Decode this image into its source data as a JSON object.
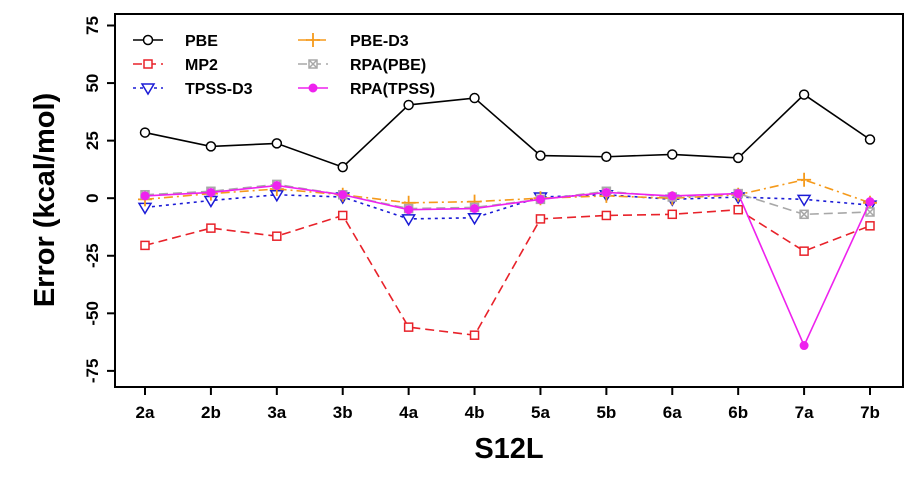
{
  "chart_data": {
    "type": "line",
    "xlabel": "S12L",
    "ylabel": "Error (kcal/mol)",
    "categories": [
      "2a",
      "2b",
      "3a",
      "3b",
      "4a",
      "4b",
      "5a",
      "5b",
      "6a",
      "6b",
      "7a",
      "7b"
    ],
    "ylim": [
      -82,
      80
    ],
    "yticks": [
      -75,
      -50,
      -25,
      0,
      25,
      50,
      75
    ],
    "grid": false,
    "legend_position": "top-left",
    "series": [
      {
        "name": "PBE",
        "color": "#000000",
        "dash": "solid",
        "marker": "circle-open",
        "values": [
          28.5,
          22.5,
          23.8,
          13.5,
          40.5,
          43.5,
          18.5,
          18.0,
          19.0,
          17.5,
          45.0,
          25.5
        ]
      },
      {
        "name": "MP2",
        "color": "#e8222a",
        "dash": "dashed",
        "marker": "square-open",
        "values": [
          -20.5,
          -13.0,
          -16.5,
          -7.5,
          -56.0,
          -59.5,
          -9.0,
          -7.5,
          -7.0,
          -5.0,
          -23.0,
          -12.0
        ]
      },
      {
        "name": "TPSS-D3",
        "color": "#1b1bd6",
        "dash": "dotted",
        "marker": "triangle-down-open",
        "values": [
          -4.0,
          -1.0,
          1.5,
          0.5,
          -9.0,
          -8.5,
          0.5,
          1.5,
          -0.5,
          0.5,
          -0.5,
          -3.0
        ]
      },
      {
        "name": "PBE-D3",
        "color": "#f59a1b",
        "dash": "dashdot",
        "marker": "plus",
        "values": [
          -0.5,
          2.0,
          4.0,
          1.5,
          -2.0,
          -1.5,
          0.0,
          1.0,
          0.0,
          1.5,
          8.0,
          -2.0
        ]
      },
      {
        "name": "RPA(PBE)",
        "color": "#a8a8a8",
        "dash": "dashed",
        "marker": "square-x",
        "values": [
          1.5,
          3.0,
          6.0,
          1.5,
          -4.5,
          -4.0,
          -0.5,
          3.0,
          0.5,
          2.0,
          -7.0,
          -6.0
        ]
      },
      {
        "name": "RPA(TPSS)",
        "color": "#ee22ee",
        "dash": "solid",
        "marker": "circle-filled",
        "values": [
          1.0,
          2.5,
          5.5,
          1.5,
          -5.0,
          -4.5,
          -0.5,
          2.5,
          1.0,
          2.0,
          -64.0,
          -1.5
        ]
      }
    ]
  }
}
